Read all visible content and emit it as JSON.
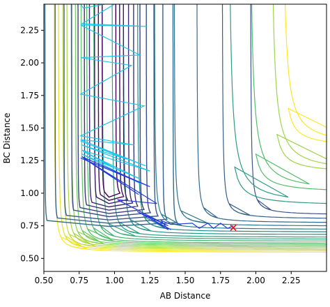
{
  "chart_data": {
    "type": "contour",
    "title": "",
    "xlabel": "AB Distance",
    "ylabel": "BC Distance",
    "xlim": [
      0.5,
      2.5
    ],
    "ylim": [
      0.4,
      2.45
    ],
    "xticks": [
      0.5,
      0.75,
      1.0,
      1.25,
      1.5,
      1.75,
      2.0,
      2.25
    ],
    "yticks": [
      0.5,
      0.75,
      1.0,
      1.25,
      1.5,
      1.75,
      2.0,
      2.25
    ],
    "xtick_labels": [
      "0.50",
      "0.75",
      "1.00",
      "1.25",
      "1.50",
      "1.75",
      "2.00",
      "2.25"
    ],
    "ytick_labels": [
      "0.50",
      "0.75",
      "1.00",
      "1.25",
      "1.50",
      "1.75",
      "2.00",
      "2.25"
    ],
    "grid": false,
    "colormap": "viridis",
    "colormap_colors": [
      "#440154",
      "#3b528b",
      "#21918c",
      "#5ec962",
      "#fde725"
    ],
    "surface": {
      "wall_asymptote_x": 0.74,
      "wall_asymptote_y": 0.74,
      "channel_levels": [
        [
          0.57,
          0.545
        ],
        [
          0.6,
          0.555
        ],
        [
          0.63,
          0.565
        ],
        [
          0.66,
          0.575
        ],
        [
          0.69,
          0.585
        ],
        [
          0.72,
          0.595
        ],
        [
          0.76,
          0.605
        ],
        [
          0.8,
          0.615
        ],
        [
          0.85,
          0.63
        ],
        [
          0.91,
          0.645
        ],
        [
          0.98,
          0.66
        ],
        [
          1.06,
          0.68
        ],
        [
          1.16,
          0.7
        ],
        [
          1.28,
          0.72
        ],
        [
          1.42,
          0.745
        ],
        [
          1.58,
          0.77
        ],
        [
          1.76,
          0.8
        ],
        [
          1.96,
          0.83
        ]
      ],
      "valley_x_levels": [
        0.8,
        0.83,
        0.86,
        0.9,
        0.94,
        0.99,
        1.04,
        1.1,
        1.17,
        1.25
      ],
      "outer_levels": [
        [
          2.1,
          0.9
        ],
        [
          2.25,
          1.0
        ],
        [
          2.4,
          1.15
        ],
        [
          2.48,
          1.35
        ]
      ]
    },
    "trajectory": {
      "series": [
        {
          "x": [
            0.76,
            0.78,
            1.03,
            0.77,
            1.23,
            0.76,
            1.18,
            0.76,
            1.12,
            0.76,
            1.21,
            0.76,
            1.14,
            0.76,
            1.22,
            0.76,
            1.09,
            0.77,
            1.25,
            0.77,
            1.04,
            0.78,
            1.18,
            0.77,
            1.19
          ],
          "y": [
            2.45,
            2.42,
            2.47,
            2.3,
            2.28,
            2.29,
            2.06,
            2.04,
            1.98,
            1.76,
            1.67,
            1.44,
            1.37,
            1.41,
            1.21,
            1.4,
            1.26,
            1.37,
            1.17,
            1.33,
            1.17,
            1.32,
            1.11,
            1.3,
            1.07
          ],
          "color": "#1fc6e9"
        },
        {
          "x": [
            0.76,
            1.25,
            0.77,
            1.17,
            0.78,
            1.3,
            1.02,
            1.38,
            1.16,
            1.4,
            1.26,
            1.38,
            1.33,
            1.4,
            1.55,
            1.6,
            1.66,
            1.7,
            1.75,
            1.8,
            1.84
          ],
          "y": [
            1.27,
            1.05,
            1.28,
            0.99,
            1.27,
            0.92,
            0.95,
            0.75,
            0.86,
            0.72,
            0.8,
            0.72,
            0.79,
            0.76,
            0.77,
            0.73,
            0.77,
            0.73,
            0.77,
            0.73,
            0.75
          ],
          "color": "#1f3bd9"
        }
      ],
      "end_marker": {
        "x": 1.84,
        "y": 0.735,
        "symbol": "x",
        "color": "#ff0000"
      }
    }
  }
}
